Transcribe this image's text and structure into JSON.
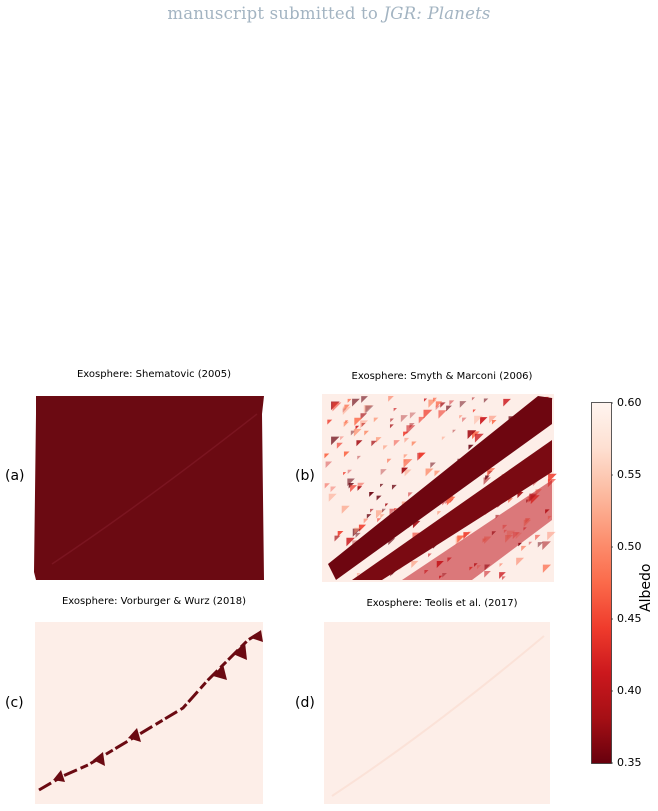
{
  "header": {
    "prefix": "manuscript submitted to",
    "journal": "JGR: Planets"
  },
  "panels": [
    {
      "label": "(a)",
      "title": "Exosphere: Shematovic (2005)",
      "pattern": "uniform-dark"
    },
    {
      "label": "(b)",
      "title": "Exosphere: Smyth & Marconi (2006)",
      "pattern": "dark-bands"
    },
    {
      "label": "(c)",
      "title": "Exosphere: Vorburger & Wurz (2018)",
      "pattern": "light-with-diagonal-line"
    },
    {
      "label": "(d)",
      "title": "Exosphere: Teolis et al. (2017)",
      "pattern": "uniform-light"
    }
  ],
  "colorbar": {
    "label": "Albedo",
    "min": 0.35,
    "max": 0.6,
    "ticks": [
      "0.60",
      "0.55",
      "0.50",
      "0.45",
      "0.40",
      "0.35"
    ],
    "colormap": [
      "#67000d",
      "#a50f15",
      "#cb181d",
      "#ef3b2c",
      "#fb6a4a",
      "#fc9272",
      "#fcbba1",
      "#fee0d2",
      "#fff5f0"
    ]
  }
}
